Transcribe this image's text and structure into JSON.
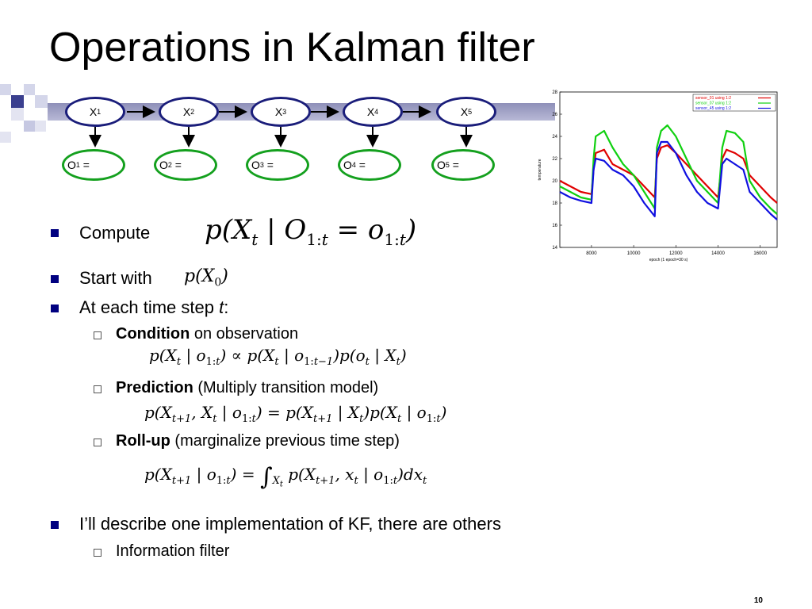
{
  "title": "Operations in Kalman filter",
  "graph": {
    "hidden_nodes": [
      "X",
      "X",
      "X",
      "X",
      "X"
    ],
    "hidden_subs": [
      "1",
      "2",
      "3",
      "4",
      "5"
    ],
    "obs_nodes": [
      "O",
      "O",
      "O",
      "O",
      "O"
    ],
    "obs_subs": [
      "1",
      "2",
      "3",
      "4",
      "5"
    ],
    "obs_eq": "=",
    "hidden_color": "#1a1d7a",
    "obs_color": "#14a01e"
  },
  "bullets": {
    "compute": "Compute",
    "start_with": "Start with",
    "each_step_prefix": "At each time step ",
    "each_step_var": "t",
    "each_step_suffix": ":",
    "condition_bold": "Condition",
    "condition_rest": " on observation",
    "prediction_bold": "Prediction",
    "prediction_rest": " (Multiply transition model)",
    "rollup_bold": "Roll-up",
    "rollup_rest": " (marginalize previous time step)",
    "describe": "I’ll describe one implementation of KF, there are others",
    "info_filter": "Information filter"
  },
  "slide_number": "10",
  "bullet_color": "#000080",
  "chart_data": {
    "type": "line",
    "xlabel": "epoch (1 epoch=30 s)",
    "ylabel": "temperature",
    "xlim": [
      6500,
      16800
    ],
    "ylim": [
      14,
      28
    ],
    "xticks": [
      "8000",
      "10000",
      "12000",
      "14000",
      "16000"
    ],
    "yticks": [
      "14",
      "16",
      "18",
      "20",
      "22",
      "24",
      "26",
      "28"
    ],
    "legend_position": "top-right",
    "series": [
      {
        "name": "sensor_01 using 1:2",
        "color": "#e00000",
        "x": [
          6500,
          7000,
          7500,
          8000,
          8100,
          8200,
          8600,
          9000,
          9500,
          10000,
          10500,
          11000,
          11100,
          11300,
          11600,
          12000,
          12500,
          13000,
          13500,
          14000,
          14200,
          14400,
          14800,
          15200,
          15500,
          16000,
          16500,
          16800
        ],
        "y": [
          20,
          19.5,
          19,
          18.8,
          21,
          22.5,
          22.8,
          21.5,
          21,
          20.5,
          19.5,
          18.5,
          22,
          23,
          23.2,
          22.5,
          21.5,
          20.5,
          19.5,
          18.5,
          22,
          22.8,
          22.5,
          22,
          20.5,
          19.5,
          18.5,
          18
        ]
      },
      {
        "name": "sensor_07 using 1:2",
        "color": "#10d010",
        "x": [
          6500,
          7000,
          7500,
          8000,
          8100,
          8200,
          8600,
          9000,
          9500,
          10000,
          10500,
          11000,
          11100,
          11300,
          11600,
          12000,
          12500,
          13000,
          13500,
          14000,
          14200,
          14400,
          14800,
          15200,
          15500,
          16000,
          16500,
          16800
        ],
        "y": [
          19.5,
          19,
          18.5,
          18.3,
          22,
          24,
          24.5,
          23,
          21.5,
          20.5,
          19,
          17.5,
          23,
          24.5,
          25,
          24,
          22,
          20,
          19,
          18,
          23,
          24.5,
          24.3,
          23.5,
          20,
          18.5,
          17.5,
          17
        ]
      },
      {
        "name": "sensor_45 using 1:2",
        "color": "#1010e0",
        "x": [
          6500,
          7000,
          7500,
          8000,
          8100,
          8200,
          8600,
          9000,
          9500,
          10000,
          10500,
          11000,
          11100,
          11300,
          11600,
          12000,
          12500,
          13000,
          13500,
          14000,
          14200,
          14400,
          14800,
          15200,
          15500,
          16000,
          16500,
          16800
        ],
        "y": [
          19,
          18.5,
          18.2,
          18,
          21,
          22,
          21.8,
          21,
          20.5,
          19.5,
          18,
          16.8,
          22.5,
          23.5,
          23.5,
          22.5,
          20.5,
          19,
          18,
          17.5,
          21.5,
          22,
          21.5,
          21,
          19,
          18,
          17,
          16.5
        ]
      }
    ]
  }
}
